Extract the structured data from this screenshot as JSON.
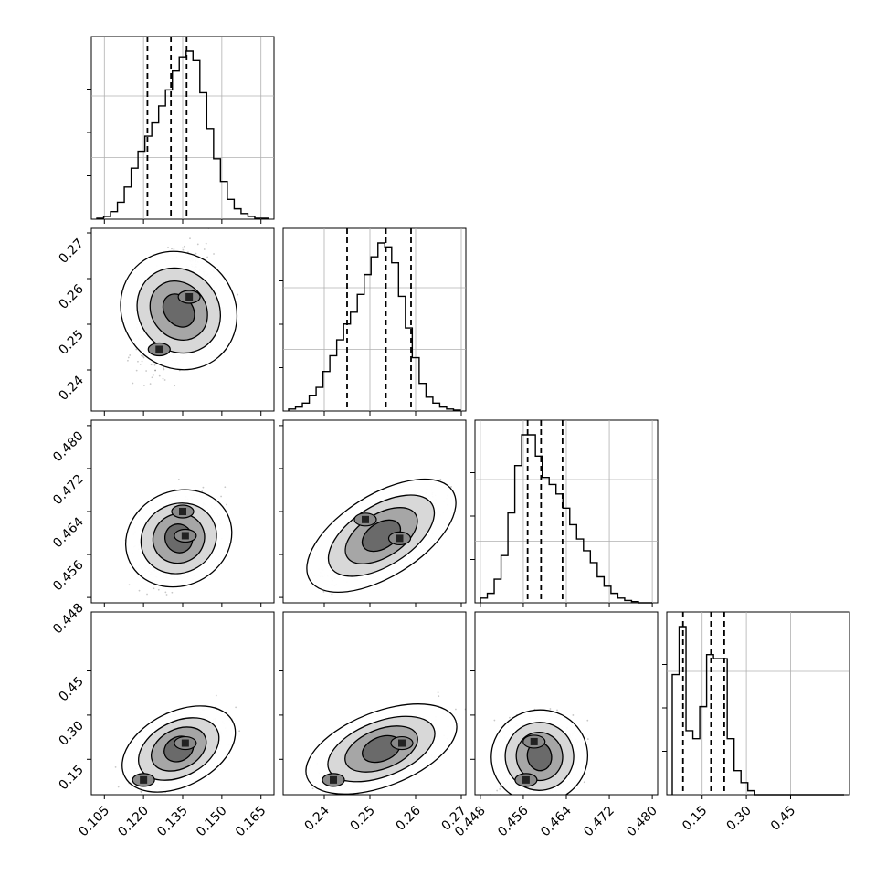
{
  "chart_data": {
    "type": "corner",
    "grid": true,
    "parameters": [
      {
        "range": [
          0.1,
          0.17
        ],
        "ticks": [
          "0.105",
          "0.120",
          "0.135",
          "0.150",
          "0.165"
        ],
        "tickvals": [
          0.105,
          0.12,
          0.135,
          0.15,
          0.165
        ],
        "quantiles": [
          0.1215,
          0.1305,
          0.1365
        ],
        "hist": [
          1,
          3,
          8,
          18,
          34,
          54,
          72,
          88,
          102,
          120,
          137,
          157,
          172,
          178,
          168,
          134,
          96,
          64,
          40,
          21,
          11,
          6,
          3,
          1,
          1
        ]
      },
      {
        "range": [
          0.231,
          0.271
        ],
        "ticks": [
          "0.24",
          "0.25",
          "0.26",
          "0.27"
        ],
        "tickvals": [
          0.24,
          0.25,
          0.26,
          0.27
        ],
        "quantiles": [
          0.245,
          0.2535,
          0.259
        ],
        "hist": [
          2,
          4,
          8,
          16,
          24,
          40,
          56,
          72,
          88,
          100,
          118,
          138,
          156,
          170,
          166,
          150,
          116,
          84,
          54,
          28,
          14,
          8,
          4,
          2,
          1
        ]
      },
      {
        "range": [
          0.447,
          0.481
        ],
        "ticks": [
          "0.448",
          "0.456",
          "0.464",
          "0.472",
          "0.480"
        ],
        "tickvals": [
          0.448,
          0.456,
          0.464,
          0.472,
          0.48
        ],
        "quantiles": [
          0.4568,
          0.4593,
          0.4633
        ],
        "hist": [
          4,
          8,
          20,
          40,
          76,
          116,
          142,
          142,
          124,
          106,
          100,
          92,
          80,
          66,
          54,
          44,
          34,
          22,
          14,
          8,
          4,
          2,
          1,
          0,
          0
        ]
      },
      {
        "range": [
          0.03,
          0.65
        ],
        "ticks": [
          "0.15",
          "0.30",
          "0.45"
        ],
        "tickvals": [
          0.15,
          0.3,
          0.45
        ],
        "yticks": [
          "0.15",
          "0.30",
          "0.45"
        ],
        "quantiles": [
          0.085,
          0.18,
          0.225
        ],
        "hist": [
          30,
          42,
          16,
          14,
          22,
          35,
          34,
          34,
          14,
          6,
          3,
          1,
          0,
          0,
          0,
          0,
          0,
          0,
          0,
          0,
          0,
          0,
          0,
          0,
          0
        ]
      }
    ],
    "pairs": [
      {
        "row": 1,
        "col": 0,
        "cx": 0.1335,
        "cy": 0.253,
        "sx": 0.0075,
        "sy": 0.0065,
        "rho": 0.55,
        "pts": [
          [
            0.1375,
            0.256
          ],
          [
            0.126,
            0.2445
          ]
        ]
      },
      {
        "row": 2,
        "col": 0,
        "cx": 0.1335,
        "cy": 0.459,
        "sx": 0.0075,
        "sy": 0.004,
        "rho": 0.45,
        "pts": [
          [
            0.136,
            0.4595
          ],
          [
            0.135,
            0.464
          ]
        ]
      },
      {
        "row": 2,
        "col": 1,
        "cx": 0.2525,
        "cy": 0.4595,
        "sx": 0.006,
        "sy": 0.004,
        "rho": 0.8,
        "pts": [
          [
            0.249,
            0.4625
          ],
          [
            0.2565,
            0.459
          ]
        ]
      },
      {
        "row": 3,
        "col": 0,
        "cx": 0.1335,
        "cy": 0.185,
        "sx": 0.008,
        "sy": 0.06,
        "rho": 0.6,
        "pts": [
          [
            0.136,
            0.205
          ],
          [
            0.12,
            0.08
          ]
        ]
      },
      {
        "row": 3,
        "col": 1,
        "cx": 0.2525,
        "cy": 0.185,
        "sx": 0.006,
        "sy": 0.06,
        "rho": 0.6,
        "pts": [
          [
            0.257,
            0.205
          ],
          [
            0.242,
            0.08
          ]
        ]
      },
      {
        "row": 3,
        "col": 2,
        "cx": 0.459,
        "cy": 0.16,
        "sx": 0.0035,
        "sy": 0.065,
        "rho": 0.2,
        "pts": [
          [
            0.458,
            0.21
          ],
          [
            0.4565,
            0.08
          ]
        ]
      }
    ]
  }
}
